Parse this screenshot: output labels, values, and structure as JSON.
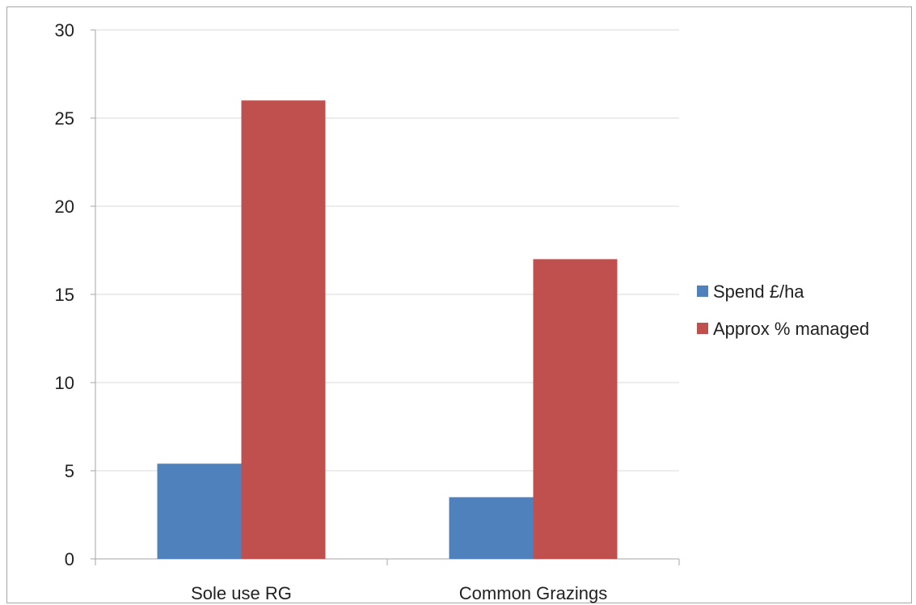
{
  "chart_data": {
    "type": "bar",
    "categories": [
      "Sole use RG",
      "Common Grazings"
    ],
    "series": [
      {
        "name": "Spend £/ha",
        "values": [
          5.4,
          3.5
        ],
        "color": "#4f81bd"
      },
      {
        "name": "Approx % managed",
        "values": [
          26,
          17
        ],
        "color": "#c0504d"
      }
    ],
    "ylim": [
      0,
      30
    ],
    "yticks": [
      0,
      5,
      10,
      15,
      20,
      25,
      30
    ],
    "grid": true,
    "legend_position": "right"
  }
}
